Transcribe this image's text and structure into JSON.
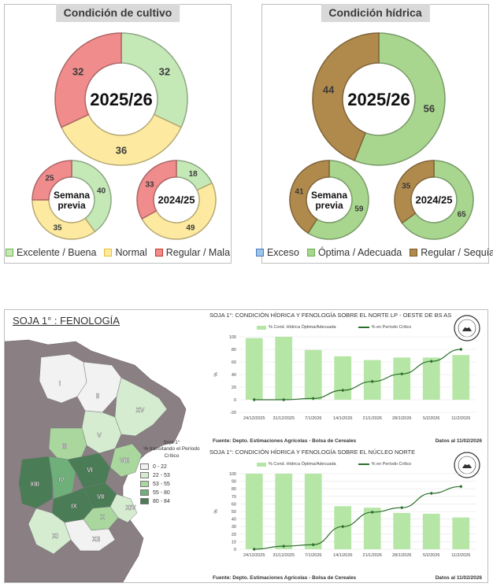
{
  "cultivo": {
    "title": "Condición de cultivo",
    "legend": [
      {
        "label": "Excelente / Buena",
        "fill": "#c5e8b7",
        "stroke": "#6ab04c"
      },
      {
        "label": "Normal",
        "fill": "#fdeaa0",
        "stroke": "#e6c22e"
      },
      {
        "label": "Regular / Mala",
        "fill": "#f08c8c",
        "stroke": "#c0392b"
      }
    ]
  },
  "hidrica": {
    "title": "Condición hídrica",
    "legend": [
      {
        "label": "Exceso",
        "fill": "#9cc3e8",
        "stroke": "#4a7fbf"
      },
      {
        "label": "Óptima / Adecuada",
        "fill": "#a8d68f",
        "stroke": "#6ab04c"
      },
      {
        "label": "Regular / Sequía",
        "fill": "#b08a4c",
        "stroke": "#7a5a22"
      }
    ]
  },
  "map": {
    "title": "SOJA 1° : FENOLOGÍA",
    "legend_title": "Soja 1°\n% transitando el Período Crítico",
    "legend": [
      {
        "label": "0 - 22",
        "color": "#f2f2f2"
      },
      {
        "label": "22 - 53",
        "color": "#d5ecd0"
      },
      {
        "label": "53 - 55",
        "color": "#a9d79e"
      },
      {
        "label": "55 - 80",
        "color": "#6fb07a"
      },
      {
        "label": "80 - 84",
        "color": "#4a7d55"
      }
    ],
    "region_labels": [
      "I",
      "II",
      "III",
      "IV",
      "V",
      "VI",
      "VII",
      "VIII",
      "IX",
      "X",
      "XI",
      "XII",
      "XIII",
      "XIV",
      "XV"
    ]
  },
  "panels": {
    "legend_bar": "% Cond. Hídrica Óptima/Adecuada",
    "legend_line": "% en Período Crítico",
    "source": "Fuente: Depto. Estimaciones Agrícolas - Bolsa de Cereales",
    "date": "Datos al 11/02/2026",
    "y_title": "%",
    "top_title": "SOJA 1°: CONDICIÓN HÍDRICA Y FENOLOGÍA SOBRE EL NORTE LP - OESTE DE BS AS",
    "bottom_title": "SOJA 1°: CONDICIÓN HÍDRICA Y FENOLOGÍA SOBRE EL NÚCLEO NORTE"
  },
  "chart_data": [
    {
      "type": "donut",
      "title": "Condición de cultivo",
      "center_label": "2025/26",
      "series": [
        {
          "name": "Excelente / Buena",
          "value": 32,
          "color": "#c5e8b7"
        },
        {
          "name": "Normal",
          "value": 36,
          "color": "#fdeaa0"
        },
        {
          "name": "Regular / Mala",
          "value": 32,
          "color": "#f08c8c"
        }
      ]
    },
    {
      "type": "donut",
      "center_label": "Semana previa",
      "series": [
        {
          "name": "Excelente / Buena",
          "value": 40,
          "color": "#c5e8b7"
        },
        {
          "name": "Normal",
          "value": 35,
          "color": "#fdeaa0"
        },
        {
          "name": "Regular / Mala",
          "value": 25,
          "color": "#f08c8c"
        }
      ]
    },
    {
      "type": "donut",
      "center_label": "2024/25",
      "series": [
        {
          "name": "Excelente / Buena",
          "value": 18,
          "color": "#c5e8b7"
        },
        {
          "name": "Normal",
          "value": 49,
          "color": "#fdeaa0"
        },
        {
          "name": "Regular / Mala",
          "value": 33,
          "color": "#f08c8c"
        }
      ]
    },
    {
      "type": "donut",
      "title": "Condición hídrica",
      "center_label": "2025/26",
      "series": [
        {
          "name": "Exceso",
          "value": 0,
          "color": "#9cc3e8"
        },
        {
          "name": "Óptima / Adecuada",
          "value": 56,
          "color": "#a8d68f"
        },
        {
          "name": "Regular / Sequía",
          "value": 44,
          "color": "#b08a4c"
        }
      ]
    },
    {
      "type": "donut",
      "center_label": "Semana previa",
      "series": [
        {
          "name": "Exceso",
          "value": 0,
          "color": "#9cc3e8"
        },
        {
          "name": "Óptima / Adecuada",
          "value": 59,
          "color": "#a8d68f"
        },
        {
          "name": "Regular / Sequía",
          "value": 41,
          "color": "#b08a4c"
        }
      ]
    },
    {
      "type": "donut",
      "center_label": "2024/25",
      "series": [
        {
          "name": "Exceso",
          "value": 0,
          "color": "#9cc3e8"
        },
        {
          "name": "Óptima / Adecuada",
          "value": 65,
          "color": "#a8d68f"
        },
        {
          "name": "Regular / Sequía",
          "value": 35,
          "color": "#b08a4c"
        }
      ]
    },
    {
      "type": "bar+line",
      "title": "SOJA 1°: CONDICIÓN HÍDRICA Y FENOLOGÍA SOBRE EL NORTE LP - OESTE DE BS AS",
      "categories": [
        "24/12/2025",
        "31/12/2025",
        "7/1/2026",
        "14/1/2026",
        "21/1/2026",
        "28/1/2026",
        "5/2/2026",
        "11/2/2026"
      ],
      "ylim": [
        -20,
        100
      ],
      "yticks": [
        -20,
        0,
        20,
        40,
        60,
        80,
        100
      ],
      "series": [
        {
          "name": "% Cond. Hídrica Óptima/Adecuada",
          "type": "bar",
          "values": [
            98,
            100,
            79,
            69,
            63,
            67,
            67,
            71
          ]
        },
        {
          "name": "% en Período Crítico",
          "type": "line",
          "values": [
            0,
            0,
            2,
            15,
            29,
            41,
            61,
            80
          ]
        }
      ]
    },
    {
      "type": "bar+line",
      "title": "SOJA 1°: CONDICIÓN HÍDRICA Y FENOLOGÍA SOBRE EL NÚCLEO NORTE",
      "categories": [
        "24/12/2025",
        "31/12/2025",
        "7/1/2026",
        "14/1/2026",
        "21/1/2026",
        "28/1/2026",
        "5/2/2026",
        "11/2/2026"
      ],
      "ylim": [
        0,
        100
      ],
      "yticks": [
        0,
        10,
        20,
        30,
        40,
        50,
        60,
        70,
        80,
        90,
        100
      ],
      "series": [
        {
          "name": "% Cond. Hídrica Óptima/Adecuada",
          "type": "bar",
          "values": [
            100,
            100,
            100,
            57,
            55,
            48,
            47,
            42
          ]
        },
        {
          "name": "% en Período Crítico",
          "type": "line",
          "values": [
            0,
            4,
            6,
            30,
            49,
            55,
            74,
            83
          ]
        }
      ]
    }
  ]
}
